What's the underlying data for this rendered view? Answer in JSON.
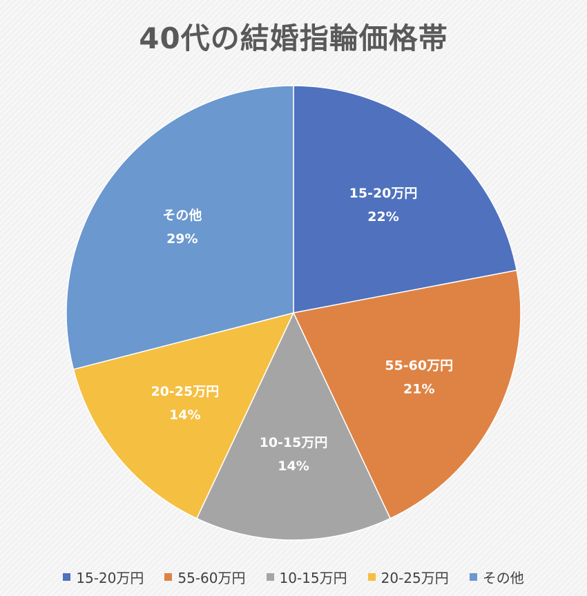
{
  "chart_data": {
    "type": "pie",
    "title": "40代の結婚指輪価格帯",
    "categories": [
      "15-20万円",
      "55-60万円",
      "10-15万円",
      "20-25万円",
      "その他"
    ],
    "values": [
      22,
      21,
      14,
      14,
      29
    ],
    "value_labels": [
      "22%",
      "21%",
      "14%",
      "14%",
      "29%"
    ],
    "colors": [
      "#4f71be",
      "#de8344",
      "#a5a5a5",
      "#f5bf42",
      "#6a98cf"
    ],
    "legend_position": "bottom"
  }
}
